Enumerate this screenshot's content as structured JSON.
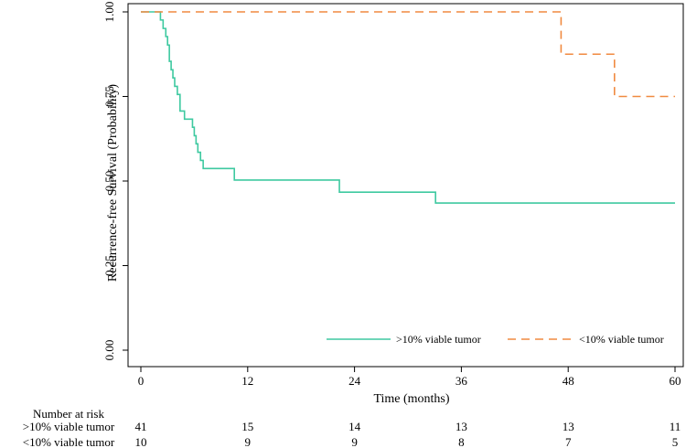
{
  "chart_data": {
    "type": "line",
    "subtype": "kaplan-meier",
    "title": "",
    "xlabel": "Time (months)",
    "ylabel": "Recurrence-free Survival (Probability)",
    "xlim": [
      0,
      60
    ],
    "ylim": [
      0,
      1
    ],
    "x_ticks": [
      0,
      12,
      24,
      36,
      48,
      60
    ],
    "x_tick_labels": [
      "0",
      "12",
      "24",
      "36",
      "48",
      "60"
    ],
    "y_ticks": [
      0,
      0.25,
      0.5,
      0.75,
      1.0
    ],
    "y_tick_labels": [
      "0.00",
      "0.25",
      "0.50",
      "0.75",
      "1.00"
    ],
    "grid": false,
    "legend_position": "bottom-right",
    "series": [
      {
        "name": ">10% viable tumor",
        "color": "#3ec9a0",
        "dash": "solid",
        "steps": [
          [
            0,
            1.0
          ],
          [
            2.2,
            0.976
          ],
          [
            2.5,
            0.951
          ],
          [
            2.8,
            0.927
          ],
          [
            3.0,
            0.902
          ],
          [
            3.2,
            0.854
          ],
          [
            3.4,
            0.829
          ],
          [
            3.6,
            0.805
          ],
          [
            3.8,
            0.78
          ],
          [
            4.1,
            0.756
          ],
          [
            4.4,
            0.707
          ],
          [
            4.9,
            0.683
          ],
          [
            5.8,
            0.659
          ],
          [
            6.0,
            0.634
          ],
          [
            6.2,
            0.61
          ],
          [
            6.4,
            0.585
          ],
          [
            6.7,
            0.561
          ],
          [
            7.0,
            0.537
          ],
          [
            10.5,
            0.503
          ],
          [
            22.3,
            0.467
          ],
          [
            33.1,
            0.435
          ],
          [
            60,
            0.435
          ]
        ]
      },
      {
        "name": "<10% viable tumor",
        "color": "#f08a40",
        "dash": "dashed",
        "steps": [
          [
            0,
            1.0
          ],
          [
            47.2,
            0.875
          ],
          [
            53.2,
            0.75
          ],
          [
            60,
            0.75
          ]
        ]
      }
    ],
    "risk_table": {
      "title": "Number at risk",
      "times": [
        0,
        12,
        24,
        36,
        48,
        60
      ],
      "rows": [
        {
          "label": ">10% viable tumor",
          "values": [
            "41",
            "15",
            "14",
            "13",
            "13",
            "11"
          ]
        },
        {
          "label": "<10% viable tumor",
          "values": [
            "10",
            "9",
            "9",
            "8",
            "7",
            "5"
          ]
        }
      ]
    }
  }
}
